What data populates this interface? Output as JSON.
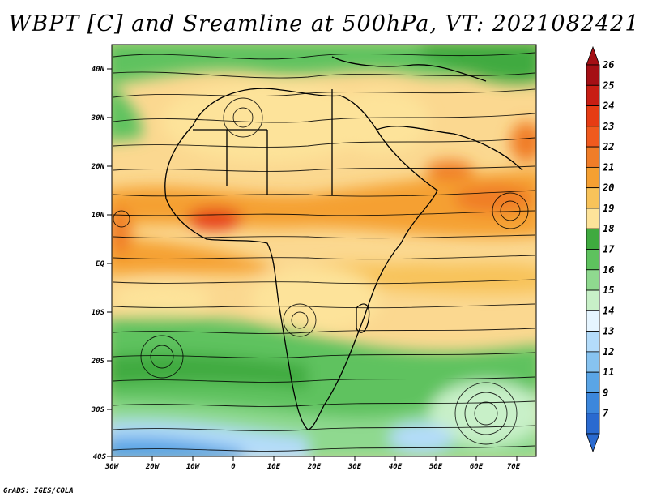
{
  "title": "WBPT [C] and Sreamline at 500hPa, VT: 2021082421",
  "footer": "GrADS: IGES/COLA",
  "map": {
    "lat_labels": [
      "40N",
      "30N",
      "20N",
      "10N",
      "EQ",
      "10S",
      "20S",
      "30S",
      "40S"
    ],
    "lon_labels": [
      "30W",
      "20W",
      "10W",
      "0",
      "10E",
      "20E",
      "30E",
      "40E",
      "50E",
      "60E",
      "70E"
    ]
  },
  "colorbar": {
    "labels": [
      "26",
      "25",
      "24",
      "23",
      "22",
      "21",
      "20",
      "19",
      "18",
      "17",
      "16",
      "15",
      "14",
      "13",
      "12",
      "11",
      "9",
      "7"
    ],
    "colors": [
      "#a50f15",
      "#c81e14",
      "#e63c14",
      "#f05a1e",
      "#f07d28",
      "#f5a032",
      "#f8c35a",
      "#fde39a",
      "#3faa3f",
      "#5ec25e",
      "#8fd98f",
      "#c8f0c8",
      "#e6f5ff",
      "#b4dcfa",
      "#87c3f0",
      "#5aa5e6",
      "#3c87dc",
      "#2a6ad0"
    ]
  }
}
